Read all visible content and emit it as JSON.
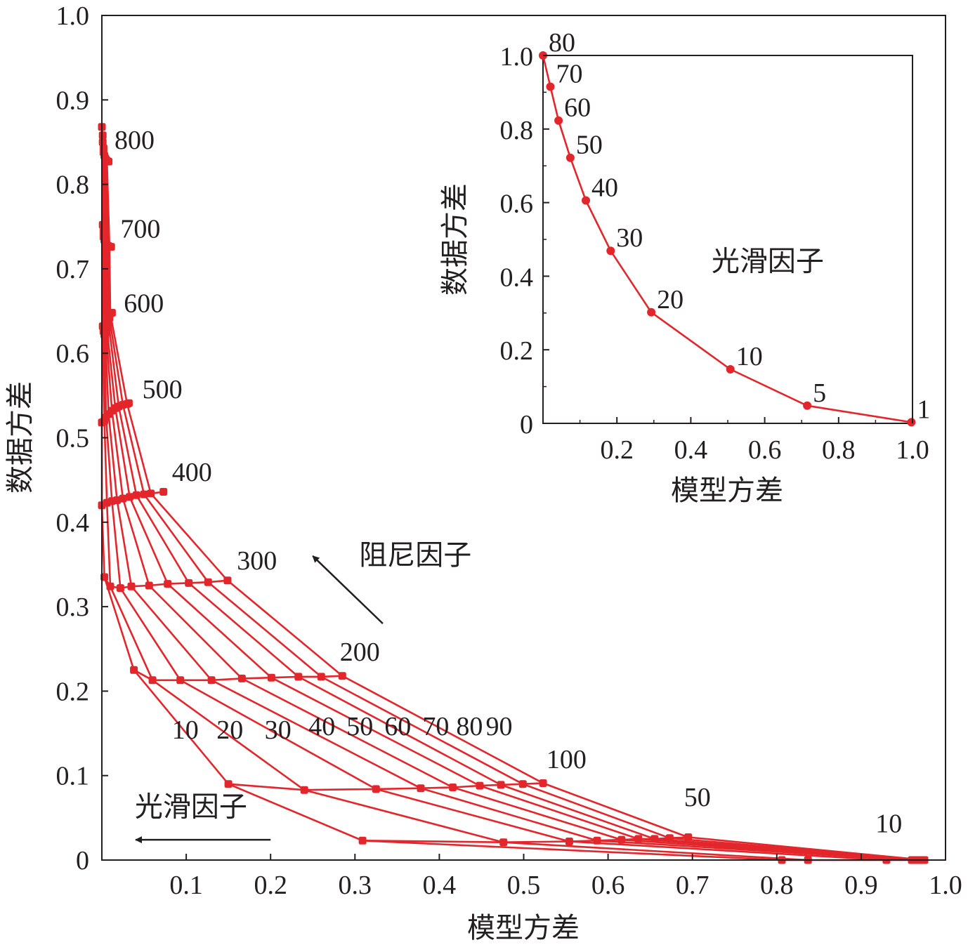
{
  "colors": {
    "series": "#e3262b",
    "axis": "#231f20",
    "arrow": "#231f20"
  },
  "chart_data": [
    {
      "type": "line",
      "xlabel": "模型方差",
      "ylabel": "数据方差",
      "xlim": [
        0,
        1.0
      ],
      "ylim": [
        0,
        1.0
      ],
      "x_ticks": [
        "0.1",
        "0.2",
        "0.3",
        "0.4",
        "0.5",
        "0.6",
        "0.7",
        "0.8",
        "0.9",
        "1.0"
      ],
      "y_ticks": [
        "0",
        "0.1",
        "0.2",
        "0.3",
        "0.4",
        "0.5",
        "0.6",
        "0.7",
        "0.8",
        "0.9",
        "1.0"
      ],
      "grid": false,
      "row_series": [
        {
          "name": "800",
          "points": [
            [
              0.0,
              0.868
            ],
            [
              0.001,
              0.858
            ],
            [
              0.001,
              0.85
            ],
            [
              0.002,
              0.843
            ],
            [
              0.002,
              0.838
            ],
            [
              0.003,
              0.834
            ],
            [
              0.004,
              0.831
            ],
            [
              0.005,
              0.829
            ],
            [
              0.006,
              0.828
            ],
            [
              0.008,
              0.827
            ]
          ]
        },
        {
          "name": "700",
          "points": [
            [
              0.001,
              0.752
            ],
            [
              0.002,
              0.744
            ],
            [
              0.002,
              0.738
            ],
            [
              0.003,
              0.734
            ],
            [
              0.004,
              0.731
            ],
            [
              0.005,
              0.729
            ],
            [
              0.006,
              0.728
            ],
            [
              0.008,
              0.727
            ],
            [
              0.009,
              0.726
            ],
            [
              0.011,
              0.726
            ]
          ]
        },
        {
          "name": "600",
          "points": [
            [
              0.001,
              0.632
            ],
            [
              0.002,
              0.626
            ],
            [
              0.003,
              0.622
            ],
            [
              0.004,
              0.622
            ],
            [
              0.005,
              0.625
            ],
            [
              0.006,
              0.63
            ],
            [
              0.008,
              0.636
            ],
            [
              0.009,
              0.642
            ],
            [
              0.01,
              0.647
            ],
            [
              0.012,
              0.648
            ]
          ]
        },
        {
          "name": "500",
          "points": [
            [
              0.0,
              0.518
            ],
            [
              0.003,
              0.52
            ],
            [
              0.005,
              0.524
            ],
            [
              0.008,
              0.528
            ],
            [
              0.012,
              0.532
            ],
            [
              0.016,
              0.535
            ],
            [
              0.02,
              0.537
            ],
            [
              0.025,
              0.539
            ],
            [
              0.03,
              0.54
            ],
            [
              0.032,
              0.541
            ]
          ]
        },
        {
          "name": "400",
          "points": [
            [
              0.0,
              0.42
            ],
            [
              0.006,
              0.423
            ],
            [
              0.012,
              0.425
            ],
            [
              0.018,
              0.426
            ],
            [
              0.025,
              0.428
            ],
            [
              0.033,
              0.43
            ],
            [
              0.041,
              0.432
            ],
            [
              0.05,
              0.433
            ],
            [
              0.058,
              0.434
            ],
            [
              0.073,
              0.436
            ]
          ]
        },
        {
          "name": "300",
          "points": [
            [
              0.003,
              0.335
            ],
            [
              0.01,
              0.324
            ],
            [
              0.022,
              0.322
            ],
            [
              0.035,
              0.324
            ],
            [
              0.056,
              0.325
            ],
            [
              0.078,
              0.327
            ],
            [
              0.103,
              0.328
            ],
            [
              0.126,
              0.329
            ],
            [
              0.149,
              0.331
            ]
          ]
        },
        {
          "name": "200",
          "points": [
            [
              0.038,
              0.225
            ],
            [
              0.06,
              0.213
            ],
            [
              0.093,
              0.213
            ],
            [
              0.13,
              0.213
            ],
            [
              0.166,
              0.215
            ],
            [
              0.201,
              0.216
            ],
            [
              0.233,
              0.217
            ],
            [
              0.26,
              0.217
            ],
            [
              0.285,
              0.218
            ]
          ]
        },
        {
          "name": "100",
          "points": [
            [
              0.15,
              0.09
            ],
            [
              0.24,
              0.083
            ],
            [
              0.325,
              0.084
            ],
            [
              0.378,
              0.085
            ],
            [
              0.416,
              0.086
            ],
            [
              0.448,
              0.088
            ],
            [
              0.473,
              0.089
            ],
            [
              0.499,
              0.09
            ],
            [
              0.523,
              0.091
            ]
          ]
        },
        {
          "name": "50",
          "points": [
            [
              0.309,
              0.023
            ],
            [
              0.476,
              0.021
            ],
            [
              0.554,
              0.022
            ],
            [
              0.587,
              0.023
            ],
            [
              0.616,
              0.024
            ],
            [
              0.636,
              0.025
            ],
            [
              0.655,
              0.025
            ],
            [
              0.673,
              0.026
            ],
            [
              0.695,
              0.027
            ]
          ]
        },
        {
          "name": "10",
          "points": [
            [
              0.806,
              0.0
            ],
            [
              0.837,
              0.0
            ],
            [
              0.93,
              0.0
            ],
            [
              0.96,
              0.0
            ],
            [
              0.965,
              0.0
            ],
            [
              0.968,
              0.0
            ],
            [
              0.97,
              0.0
            ],
            [
              0.972,
              0.0
            ],
            [
              0.975,
              0.0
            ]
          ]
        }
      ],
      "column_series": [
        {
          "name": "10",
          "points": [
            [
              0.0,
              0.868
            ],
            [
              0.001,
              0.752
            ],
            [
              0.001,
              0.632
            ],
            [
              0.0,
              0.518
            ],
            [
              0.0,
              0.42
            ],
            [
              0.003,
              0.335
            ],
            [
              0.038,
              0.225
            ],
            [
              0.15,
              0.09
            ],
            [
              0.309,
              0.023
            ],
            [
              0.806,
              0.0
            ]
          ]
        },
        {
          "name": "20",
          "points": [
            [
              0.001,
              0.858
            ],
            [
              0.002,
              0.744
            ],
            [
              0.002,
              0.626
            ],
            [
              0.003,
              0.52
            ],
            [
              0.006,
              0.423
            ],
            [
              0.01,
              0.324
            ],
            [
              0.06,
              0.213
            ],
            [
              0.24,
              0.083
            ],
            [
              0.476,
              0.021
            ],
            [
              0.837,
              0.0
            ]
          ]
        },
        {
          "name": "30",
          "points": [
            [
              0.001,
              0.85
            ],
            [
              0.002,
              0.738
            ],
            [
              0.003,
              0.622
            ],
            [
              0.005,
              0.524
            ],
            [
              0.012,
              0.425
            ],
            [
              0.022,
              0.322
            ],
            [
              0.093,
              0.213
            ],
            [
              0.325,
              0.084
            ],
            [
              0.554,
              0.022
            ],
            [
              0.93,
              0.0
            ]
          ]
        },
        {
          "name": "40",
          "points": [
            [
              0.002,
              0.843
            ],
            [
              0.003,
              0.734
            ],
            [
              0.004,
              0.622
            ],
            [
              0.008,
              0.528
            ],
            [
              0.018,
              0.426
            ],
            [
              0.035,
              0.324
            ],
            [
              0.13,
              0.213
            ],
            [
              0.378,
              0.085
            ],
            [
              0.587,
              0.023
            ],
            [
              0.96,
              0.0
            ]
          ]
        },
        {
          "name": "50",
          "points": [
            [
              0.002,
              0.838
            ],
            [
              0.004,
              0.731
            ],
            [
              0.005,
              0.625
            ],
            [
              0.012,
              0.532
            ],
            [
              0.025,
              0.428
            ],
            [
              0.056,
              0.325
            ],
            [
              0.166,
              0.215
            ],
            [
              0.416,
              0.086
            ],
            [
              0.616,
              0.024
            ],
            [
              0.965,
              0.0
            ]
          ]
        },
        {
          "name": "60",
          "points": [
            [
              0.003,
              0.834
            ],
            [
              0.005,
              0.729
            ],
            [
              0.006,
              0.63
            ],
            [
              0.016,
              0.535
            ],
            [
              0.033,
              0.43
            ],
            [
              0.078,
              0.327
            ],
            [
              0.201,
              0.216
            ],
            [
              0.448,
              0.088
            ],
            [
              0.636,
              0.025
            ],
            [
              0.968,
              0.0
            ]
          ]
        },
        {
          "name": "70",
          "points": [
            [
              0.004,
              0.831
            ],
            [
              0.006,
              0.728
            ],
            [
              0.008,
              0.636
            ],
            [
              0.02,
              0.537
            ],
            [
              0.041,
              0.432
            ],
            [
              0.103,
              0.328
            ],
            [
              0.233,
              0.217
            ],
            [
              0.473,
              0.089
            ],
            [
              0.655,
              0.025
            ],
            [
              0.97,
              0.0
            ]
          ]
        },
        {
          "name": "80",
          "points": [
            [
              0.005,
              0.829
            ],
            [
              0.008,
              0.727
            ],
            [
              0.009,
              0.642
            ],
            [
              0.025,
              0.539
            ],
            [
              0.05,
              0.433
            ],
            [
              0.126,
              0.329
            ],
            [
              0.26,
              0.217
            ],
            [
              0.499,
              0.09
            ],
            [
              0.673,
              0.026
            ],
            [
              0.972,
              0.0
            ]
          ]
        },
        {
          "name": "90",
          "points": [
            [
              0.006,
              0.828
            ],
            [
              0.009,
              0.726
            ],
            [
              0.01,
              0.647
            ],
            [
              0.03,
              0.54
            ],
            [
              0.058,
              0.434
            ],
            [
              0.149,
              0.331
            ],
            [
              0.285,
              0.218
            ],
            [
              0.523,
              0.091
            ],
            [
              0.695,
              0.027
            ],
            [
              0.975,
              0.0
            ]
          ]
        }
      ],
      "row_labels": [
        {
          "text": "800",
          "x": 0.015,
          "y": 0.842
        },
        {
          "text": "700",
          "x": 0.022,
          "y": 0.737
        },
        {
          "text": "600",
          "x": 0.026,
          "y": 0.649
        },
        {
          "text": "500",
          "x": 0.048,
          "y": 0.547
        },
        {
          "text": "400",
          "x": 0.083,
          "y": 0.449
        },
        {
          "text": "300",
          "x": 0.16,
          "y": 0.344
        },
        {
          "text": "200",
          "x": 0.282,
          "y": 0.236
        },
        {
          "text": "100",
          "x": 0.527,
          "y": 0.109
        },
        {
          "text": "50",
          "x": 0.69,
          "y": 0.064
        },
        {
          "text": "10",
          "x": 0.917,
          "y": 0.033
        }
      ],
      "column_labels": [
        {
          "text": "10",
          "x": 0.083,
          "y": 0.144
        },
        {
          "text": "20",
          "x": 0.136,
          "y": 0.144
        },
        {
          "text": "30",
          "x": 0.193,
          "y": 0.144
        },
        {
          "text": "40",
          "x": 0.245,
          "y": 0.148
        },
        {
          "text": "50",
          "x": 0.29,
          "y": 0.148
        },
        {
          "text": "60",
          "x": 0.335,
          "y": 0.148
        },
        {
          "text": "70",
          "x": 0.38,
          "y": 0.148
        },
        {
          "text": "80",
          "x": 0.42,
          "y": 0.148
        },
        {
          "text": "90",
          "x": 0.455,
          "y": 0.148
        }
      ],
      "annotations": [
        {
          "id": "damping",
          "text": "阻尼因子",
          "x": 0.305,
          "y": 0.35
        },
        {
          "id": "smoothing",
          "text": "光滑因子",
          "x": 0.039,
          "y": 0.052
        }
      ],
      "arrows": [
        {
          "id": "damping",
          "from": [
            0.333,
            0.28
          ],
          "to": [
            0.25,
            0.36
          ]
        },
        {
          "id": "smoothing",
          "from": [
            0.2,
            0.024
          ],
          "to": [
            0.04,
            0.024
          ]
        }
      ]
    },
    {
      "type": "line",
      "xlabel": "模型方差",
      "ylabel": "数据方差",
      "xlim": [
        0,
        1.0
      ],
      "ylim": [
        0,
        1.0
      ],
      "x_ticks": [
        "0.2",
        "0.4",
        "0.6",
        "0.8",
        "1.0"
      ],
      "y_ticks": [
        "0",
        "0.2",
        "0.4",
        "0.6",
        "0.8",
        "1.0"
      ],
      "grid": false,
      "series": [
        {
          "points": [
            [
              0.0,
              1.0
            ],
            [
              0.02,
              0.915
            ],
            [
              0.042,
              0.823
            ],
            [
              0.074,
              0.722
            ],
            [
              0.116,
              0.606
            ],
            [
              0.183,
              0.469
            ],
            [
              0.293,
              0.302
            ],
            [
              0.507,
              0.147
            ],
            [
              0.715,
              0.048
            ],
            [
              0.997,
              0.003
            ]
          ],
          "labels": [
            "80",
            "70",
            "60",
            "50",
            "40",
            "30",
            "20",
            "10",
            "5",
            "1"
          ]
        }
      ],
      "annotation": {
        "text": "光滑因子",
        "x": 0.456,
        "y": 0.415
      }
    }
  ]
}
